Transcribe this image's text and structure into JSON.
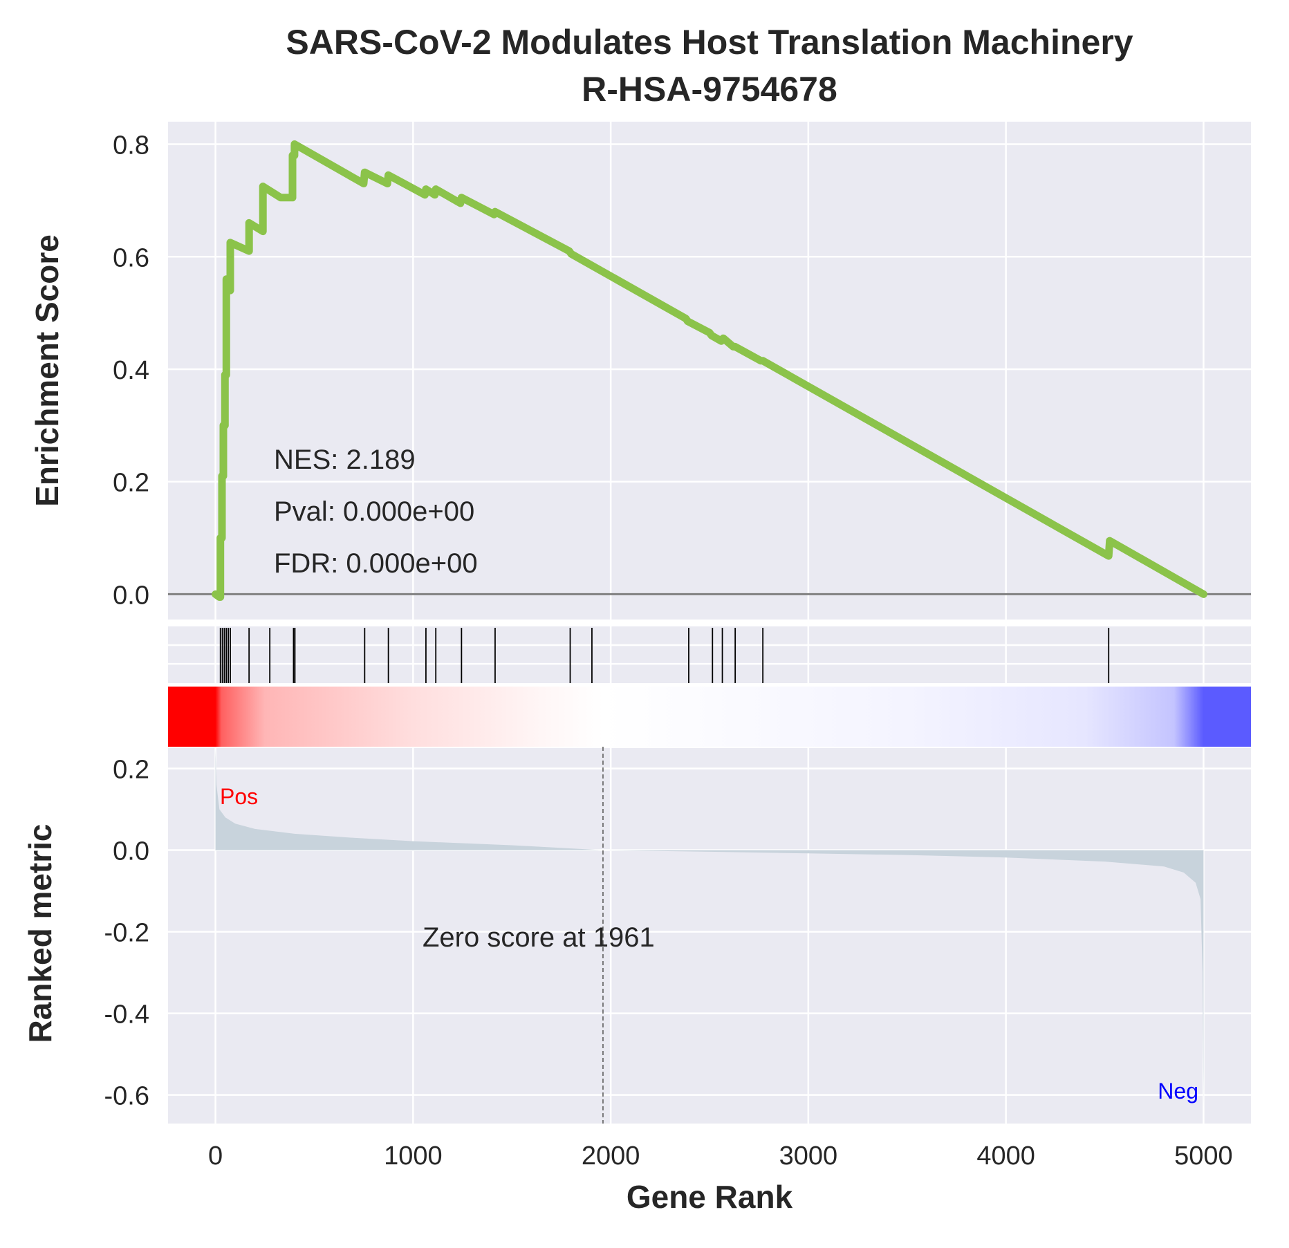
{
  "chart_data": {
    "type": "line",
    "title": "SARS-CoV-2 Modulates Host Translation Machinery",
    "subtitle": "R-HSA-9754678",
    "xlabel": "Gene Rank",
    "xlim": [
      -240,
      5240
    ],
    "x_ticks": [
      0,
      1000,
      2000,
      3000,
      4000,
      5000
    ],
    "x_tick_labels": [
      "0",
      "1000",
      "2000",
      "3000",
      "4000",
      "5000"
    ],
    "grid": true,
    "enrichment": {
      "ylabel": "Enrichment Score",
      "ylim": [
        -0.045,
        0.84
      ],
      "y_ticks": [
        0.0,
        0.2,
        0.4,
        0.6,
        0.8
      ],
      "y_tick_labels": [
        "0.0",
        "0.2",
        "0.4",
        "0.6",
        "0.8"
      ],
      "color": "#8bc34a",
      "series": [
        {
          "x": [
            0,
            20,
            25,
            25,
            33,
            33,
            40,
            40,
            48,
            48,
            55,
            55,
            65,
            65,
            75,
            75,
            170,
            170,
            240,
            240,
            330,
            390,
            390,
            400,
            400,
            750,
            755,
            870,
            875,
            1060,
            1065,
            1110,
            1115,
            1240,
            1245,
            1410,
            1415,
            1790,
            1800,
            2380,
            2390,
            2500,
            2510,
            2560,
            2570,
            2620,
            2630,
            2760,
            2770,
            4520,
            4525,
            5000
          ],
          "y": [
            0.0,
            -0.005,
            -0.005,
            0.1,
            0.1,
            0.21,
            0.21,
            0.3,
            0.3,
            0.39,
            0.39,
            0.56,
            0.56,
            0.54,
            0.54,
            0.625,
            0.61,
            0.66,
            0.645,
            0.725,
            0.705,
            0.705,
            0.78,
            0.78,
            0.8,
            0.73,
            0.75,
            0.73,
            0.745,
            0.71,
            0.72,
            0.71,
            0.72,
            0.695,
            0.705,
            0.675,
            0.68,
            0.61,
            0.605,
            0.49,
            0.485,
            0.465,
            0.46,
            0.45,
            0.455,
            0.44,
            0.44,
            0.415,
            0.415,
            0.068,
            0.095,
            0.0
          ]
        }
      ],
      "annotations": [
        "NES: 2.189",
        "Pval: 0.000e+00",
        "FDR: 0.000e+00"
      ]
    },
    "hits": [
      25,
      35,
      45,
      55,
      65,
      75,
      170,
      275,
      395,
      402,
      755,
      875,
      1065,
      1115,
      1245,
      1415,
      1795,
      1905,
      2395,
      2515,
      2565,
      2630,
      2770,
      4520
    ],
    "heatmap": {
      "colormap": "bwr",
      "stops": [
        {
          "rank": 0,
          "color": "#ff0000"
        },
        {
          "rank": 30,
          "color": "#ff6060"
        },
        {
          "rank": 250,
          "color": "#ffb6b6"
        },
        {
          "rank": 1000,
          "color": "#ffdede"
        },
        {
          "rank": 1650,
          "color": "#fff6f6"
        },
        {
          "rank": 1961,
          "color": "#ffffff"
        },
        {
          "rank": 3500,
          "color": "#f4f4ff"
        },
        {
          "rank": 4400,
          "color": "#e6e6ff"
        },
        {
          "rank": 4850,
          "color": "#c4c4ff"
        },
        {
          "rank": 5000,
          "color": "#5b5bff"
        }
      ]
    },
    "ranked_metric": {
      "ylabel": "Ranked metric",
      "ylim": [
        -0.67,
        0.25
      ],
      "y_ticks": [
        0.2,
        0.0,
        -0.2,
        -0.4,
        -0.6
      ],
      "y_tick_labels": [
        "0.2",
        "0.0",
        "-0.2",
        "-0.4",
        "-0.6"
      ],
      "fill_color": "#c8d3dc",
      "x": [
        0,
        5,
        20,
        50,
        100,
        200,
        400,
        700,
        1000,
        1500,
        1961,
        2500,
        3000,
        3500,
        4000,
        4500,
        4800,
        4900,
        4960,
        4985,
        4995,
        5000
      ],
      "y": [
        0.25,
        0.16,
        0.1,
        0.08,
        0.065,
        0.052,
        0.04,
        0.03,
        0.022,
        0.012,
        0.0,
        -0.004,
        -0.008,
        -0.012,
        -0.018,
        -0.028,
        -0.04,
        -0.055,
        -0.08,
        -0.12,
        -0.3,
        -0.63
      ],
      "zero_score_rank": 1961,
      "zero_score_label": "Zero score at 1961",
      "pos_label": "Pos",
      "neg_label": "Neg",
      "pos_color": "#ff0000",
      "neg_color": "#0000ff"
    }
  }
}
